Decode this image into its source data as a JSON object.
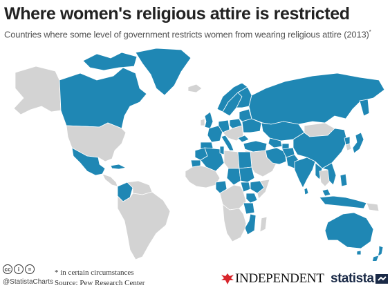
{
  "title": "Where women's religious attire is restricted",
  "subtitle": "Countries where some level of government restricts women from wearing religious attire (2013)",
  "subtitle_mark": "*",
  "colors": {
    "restricted": "#1f87b4",
    "unrestricted": "#d3d3d3",
    "border": "#ffffff",
    "title": "#222222"
  },
  "restricted_countries": [
    "Canada",
    "Mexico",
    "Cuba",
    "Colombia",
    "Greenland",
    "Norway",
    "Finland",
    "Sweden",
    "United Kingdom",
    "France",
    "Spain",
    "Germany",
    "Poland",
    "Italy",
    "Switzerland",
    "Denmark",
    "Belgium",
    "Ukraine",
    "Belarus",
    "Bulgaria",
    "Turkey",
    "Russia",
    "Morocco",
    "Western Sahara",
    "Algeria",
    "Tunisia",
    "Egypt",
    "Nigeria",
    "Chad",
    "Sudan",
    "Ethiopia",
    "South Sudan",
    "Kenya",
    "Tanzania",
    "Mozambique",
    "Iran",
    "Uzbekistan",
    "Kazakhstan",
    "Tajikistan",
    "India",
    "Pakistan",
    "Afghanistan",
    "China",
    "North Korea",
    "Japan",
    "Myanmar",
    "Laos",
    "Vietnam",
    "Philippines",
    "Sri Lanka",
    "Malaysia",
    "Indonesia",
    "Australia",
    "New Zealand"
  ],
  "footer": {
    "cc_icons": [
      "cc-icon",
      "by-icon",
      "nd-icon"
    ],
    "cc_labels": [
      "cc",
      "i",
      "="
    ],
    "handle": "@StatistaCharts",
    "note": "* in certain circumstances",
    "source": "Source: Pew Research Center",
    "independent_logo": "INDEPENDENT",
    "statista_logo": "statista"
  }
}
